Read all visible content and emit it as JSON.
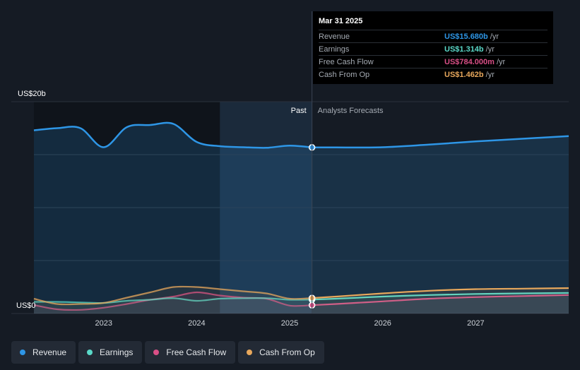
{
  "chart_data": {
    "type": "area",
    "y_axis_labels": {
      "top": "US$20b",
      "bottom": "US$0"
    },
    "ylim": [
      0,
      20
    ],
    "x_ticks": [
      "2023",
      "2024",
      "2025",
      "2026",
      "2027"
    ],
    "past_label": "Past",
    "forecast_label": "Analysts Forecasts",
    "series": [
      {
        "name": "Revenue",
        "color": "#2e96e6",
        "x": [
          2022.25,
          2022.5,
          2022.75,
          2023.0,
          2023.25,
          2023.5,
          2023.75,
          2024.0,
          2024.25,
          2024.5,
          2024.75,
          2025.0,
          2025.24,
          2025.5,
          2026.0,
          2026.5,
          2027.0,
          2027.5,
          2028.0
        ],
        "values": [
          17.3,
          17.5,
          17.5,
          15.7,
          17.6,
          17.8,
          17.9,
          16.2,
          15.8,
          15.7,
          15.65,
          15.85,
          15.68,
          15.68,
          15.7,
          15.95,
          16.25,
          16.5,
          16.75
        ]
      },
      {
        "name": "Earnings",
        "color": "#5ad8c8",
        "x": [
          2022.25,
          2022.5,
          2022.75,
          2023.0,
          2023.25,
          2023.5,
          2023.75,
          2024.0,
          2024.25,
          2024.5,
          2024.75,
          2025.0,
          2025.24,
          2025.5,
          2026.0,
          2026.5,
          2027.0,
          2027.5,
          2028.0
        ],
        "values": [
          1.1,
          1.1,
          1.05,
          1.0,
          1.2,
          1.3,
          1.45,
          1.2,
          1.4,
          1.45,
          1.45,
          1.3,
          1.314,
          1.4,
          1.6,
          1.75,
          1.85,
          1.9,
          1.95
        ]
      },
      {
        "name": "Free Cash Flow",
        "color": "#d94f86",
        "x": [
          2022.25,
          2022.5,
          2022.75,
          2023.0,
          2023.25,
          2023.5,
          2023.75,
          2024.0,
          2024.25,
          2024.5,
          2024.75,
          2025.0,
          2025.24,
          2025.5,
          2026.0,
          2026.5,
          2027.0,
          2027.5,
          2028.0
        ],
        "values": [
          0.8,
          0.4,
          0.35,
          0.55,
          0.9,
          1.3,
          1.6,
          2.0,
          1.7,
          1.5,
          1.4,
          0.75,
          0.784,
          0.9,
          1.15,
          1.4,
          1.55,
          1.65,
          1.75
        ]
      },
      {
        "name": "Cash From Op",
        "color": "#e8a85c",
        "x": [
          2022.25,
          2022.5,
          2022.75,
          2023.0,
          2023.25,
          2023.5,
          2023.75,
          2024.0,
          2024.25,
          2024.5,
          2024.75,
          2025.0,
          2025.24,
          2025.5,
          2026.0,
          2026.5,
          2027.0,
          2027.5,
          2028.0
        ],
        "values": [
          1.4,
          0.9,
          0.9,
          1.0,
          1.5,
          2.0,
          2.5,
          2.5,
          2.3,
          2.1,
          1.9,
          1.4,
          1.462,
          1.6,
          1.9,
          2.15,
          2.3,
          2.35,
          2.4
        ]
      }
    ]
  },
  "tooltip": {
    "date": "Mar 31 2025",
    "rows": [
      {
        "label": "Revenue",
        "value": "US$15.680b",
        "unit": "/yr",
        "color": "#2e96e6"
      },
      {
        "label": "Earnings",
        "value": "US$1.314b",
        "unit": "/yr",
        "color": "#5ad8c8"
      },
      {
        "label": "Free Cash Flow",
        "value": "US$784.000m",
        "unit": "/yr",
        "color": "#d94f86"
      },
      {
        "label": "Cash From Op",
        "value": "US$1.462b",
        "unit": "/yr",
        "color": "#e8a85c"
      }
    ]
  },
  "legend": [
    {
      "label": "Revenue",
      "color": "#2e96e6"
    },
    {
      "label": "Earnings",
      "color": "#5ad8c8"
    },
    {
      "label": "Free Cash Flow",
      "color": "#d94f86"
    },
    {
      "label": "Cash From Op",
      "color": "#e8a85c"
    }
  ]
}
